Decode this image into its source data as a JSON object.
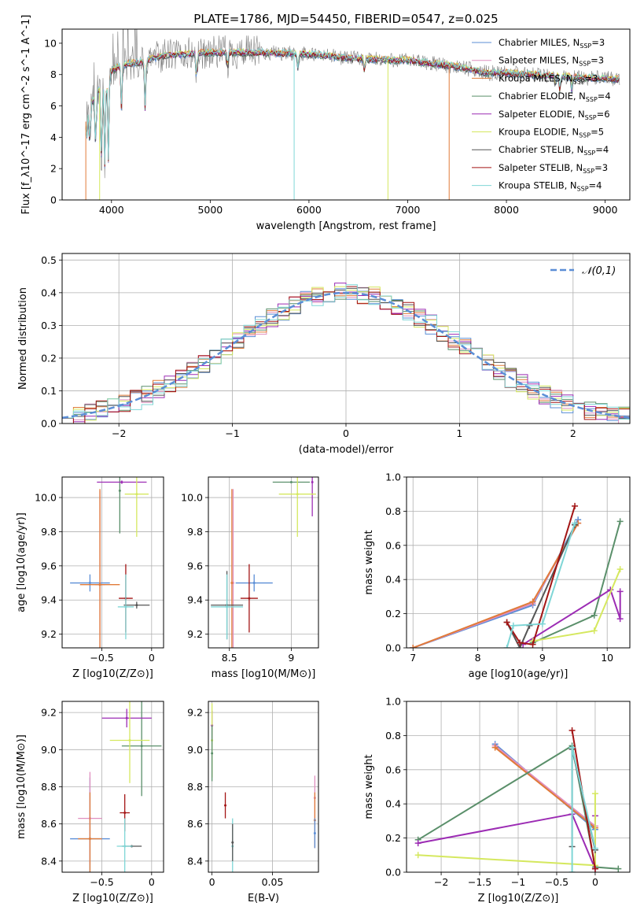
{
  "figure": {
    "title": "PLATE=1786, MJD=54450, FIBERID=0547, z=0.025"
  },
  "colors": {
    "Chabrier MILES": "#5b8ed6",
    "Salpeter MILES": "#e08fbf",
    "Kroupa MILES": "#e07b39",
    "Chabrier ELODIE": "#5a8f6a",
    "Salpeter ELODIE": "#9c2cb4",
    "Kroupa ELODIE": "#d5e85f",
    "Chabrier STELIB": "#555555",
    "Salpeter STELIB": "#a31515",
    "Kroupa STELIB": "#7fd6d6",
    "data": "#808080",
    "grid": "#b0b0b0"
  },
  "chart_data": [
    {
      "id": "spectrum",
      "type": "line",
      "xlabel": "wavelength [Angstrom, rest frame]",
      "ylabel": "Flux [f_λ10^-17 erg cm^-2 s^-1 A^-1]",
      "xlim": [
        3500,
        9250
      ],
      "ylim": [
        0,
        10.9
      ],
      "xticks": [
        4000,
        5000,
        6000,
        7000,
        8000,
        9000
      ],
      "yticks": [
        0,
        2,
        4,
        6,
        8,
        10
      ],
      "grid": false,
      "legend_position": "top-right",
      "legend": [
        {
          "label": "Chabrier MILES, N_SSP=3",
          "model": "Chabrier MILES"
        },
        {
          "label": "Salpeter MILES, N_SSP=3",
          "model": "Salpeter MILES"
        },
        {
          "label": "Kroupa MILES, N_SSP=3",
          "model": "Kroupa MILES"
        },
        {
          "label": "Chabrier ELODIE, N_SSP=4",
          "model": "Chabrier ELODIE"
        },
        {
          "label": "Salpeter ELODIE, N_SSP=6",
          "model": "Salpeter ELODIE"
        },
        {
          "label": "Kroupa ELODIE, N_SSP=5",
          "model": "Kroupa ELODIE"
        },
        {
          "label": "Chabrier STELIB, N_SSP=4",
          "model": "Chabrier STELIB"
        },
        {
          "label": "Salpeter STELIB, N_SSP=3",
          "model": "Salpeter STELIB"
        },
        {
          "label": "Kroupa STELIB, N_SSP=4",
          "model": "Kroupa STELIB"
        }
      ],
      "continuum": [
        [
          3740,
          5.0
        ],
        [
          3800,
          6.2
        ],
        [
          3900,
          7.4
        ],
        [
          4000,
          8.2
        ],
        [
          4100,
          8.6
        ],
        [
          4300,
          8.8
        ],
        [
          4500,
          9.2
        ],
        [
          5000,
          9.4
        ],
        [
          5500,
          9.4
        ],
        [
          6000,
          9.3
        ],
        [
          6500,
          9.0
        ],
        [
          7000,
          8.9
        ],
        [
          7500,
          8.5
        ],
        [
          7800,
          8.1
        ],
        [
          8000,
          8.1
        ],
        [
          8500,
          7.9
        ],
        [
          8800,
          7.8
        ],
        [
          9100,
          7.7
        ]
      ],
      "features": [
        [
          3750,
          4.0
        ],
        [
          3780,
          3.5
        ],
        [
          3840,
          3.2
        ],
        [
          3900,
          2.0
        ],
        [
          3933,
          2.2
        ],
        [
          3968,
          2.5
        ],
        [
          4102,
          5.8
        ],
        [
          4340,
          5.8
        ],
        [
          4861,
          7.6
        ],
        [
          5175,
          8.4
        ],
        [
          5890,
          8.4
        ],
        [
          6563,
          8.2
        ],
        [
          8498,
          7.3
        ],
        [
          8542,
          7.0
        ],
        [
          8662,
          7.0
        ]
      ],
      "spikes": [
        {
          "x": 3740,
          "ymin": 0,
          "model": "Kroupa MILES"
        },
        {
          "x": 3880,
          "ymin": 0,
          "model": "Kroupa ELODIE"
        },
        {
          "x": 5850,
          "ymin": 0,
          "model": "Kroupa STELIB"
        },
        {
          "x": 6800,
          "ymin": 0,
          "model": "Kroupa ELODIE"
        },
        {
          "x": 7420,
          "ymin": 0,
          "model": "Kroupa MILES"
        }
      ]
    },
    {
      "id": "residuals",
      "type": "bar",
      "xlabel": "(data-model)/error",
      "ylabel": "Normed distribution",
      "xlim": [
        -2.5,
        2.5
      ],
      "ylim": [
        0,
        0.52
      ],
      "xticks": [
        -2,
        -1,
        0,
        1,
        2
      ],
      "yticks": [
        0.0,
        0.1,
        0.2,
        0.3,
        0.4,
        0.5
      ],
      "grid": true,
      "legend_position": "top-right",
      "reference_curve": {
        "label": "𝒩(0,1)",
        "mean": 0,
        "sigma": 1,
        "amplitude": 0.4,
        "color": "#5b8ed6"
      },
      "bin_width": 0.1
    },
    {
      "id": "age_vs_Z",
      "type": "scatter",
      "xlabel": "Z [log10(Z/Z⊙)]",
      "ylabel": "age  [log10(age/yr)]",
      "xlim": [
        -0.9,
        0.12
      ],
      "ylim": [
        9.12,
        10.12
      ],
      "xticks": [
        -0.5,
        0.0
      ],
      "yticks": [
        9.2,
        9.4,
        9.6,
        9.8,
        10.0
      ],
      "grid": true,
      "points": [
        {
          "model": "Chabrier MILES",
          "x": -0.62,
          "xerr": 0.2,
          "y": 9.5,
          "yerr": 0.05
        },
        {
          "model": "Salpeter MILES",
          "x": -0.52,
          "xerr": 0.05,
          "y": 9.49,
          "yerr": 0.55
        },
        {
          "model": "Kroupa MILES",
          "x": -0.52,
          "xerr": 0.2,
          "y": 9.49,
          "yerr": 0.56
        },
        {
          "model": "Chabrier ELODIE",
          "x": -0.32,
          "xerr": 0.0,
          "y": 10.04,
          "yerr": 0.25
        },
        {
          "model": "Salpeter ELODIE",
          "x": -0.3,
          "xerr": 0.25,
          "y": 10.09,
          "yerr": 0.01
        },
        {
          "model": "Kroupa ELODIE",
          "x": -0.15,
          "xerr": 0.12,
          "y": 10.02,
          "yerr": 0.25
        },
        {
          "model": "Chabrier STELIB",
          "x": -0.15,
          "xerr": 0.13,
          "y": 9.37,
          "yerr": 0.02
        },
        {
          "model": "Salpeter STELIB",
          "x": -0.26,
          "xerr": 0.07,
          "y": 9.41,
          "yerr": 0.2
        },
        {
          "model": "Kroupa STELIB",
          "x": -0.26,
          "xerr": 0.08,
          "y": 9.36,
          "yerr": 0.19
        }
      ]
    },
    {
      "id": "age_vs_mass",
      "type": "scatter",
      "xlabel": "mass [log10(M/M⊙)]",
      "ylabel": "",
      "xlim": [
        8.33,
        9.22
      ],
      "ylim": [
        9.12,
        10.12
      ],
      "xticks": [
        8.5,
        9.0
      ],
      "yticks": [
        9.2,
        9.4,
        9.6,
        9.8,
        10.0
      ],
      "grid": true,
      "points": [
        {
          "model": "Chabrier MILES",
          "x": 8.7,
          "xerr": 0.15,
          "y": 9.5,
          "yerr": 0.05
        },
        {
          "model": "Salpeter MILES",
          "x": 8.53,
          "xerr": 0.0,
          "y": 9.5,
          "yerr": 0.55
        },
        {
          "model": "Kroupa MILES",
          "x": 8.52,
          "xerr": 0.0,
          "y": 9.5,
          "yerr": 0.55
        },
        {
          "model": "Chabrier ELODIE",
          "x": 9.0,
          "xerr": 0.15,
          "y": 10.09,
          "yerr": 0.0
        },
        {
          "model": "Salpeter ELODIE",
          "x": 9.17,
          "xerr": 0.0,
          "y": 10.09,
          "yerr": 0.2
        },
        {
          "model": "Kroupa ELODIE",
          "x": 9.05,
          "xerr": 0.15,
          "y": 10.02,
          "yerr": 0.25
        },
        {
          "model": "Chabrier STELIB",
          "x": 8.48,
          "xerr": 0.13,
          "y": 9.37,
          "yerr": 0.2
        },
        {
          "model": "Salpeter STELIB",
          "x": 8.66,
          "xerr": 0.07,
          "y": 9.41,
          "yerr": 0.2
        },
        {
          "model": "Kroupa STELIB",
          "x": 8.48,
          "xerr": 0.13,
          "y": 9.36,
          "yerr": 0.19
        }
      ]
    },
    {
      "id": "weight_vs_age",
      "type": "line",
      "xlabel": "age  [log10(age/yr)]",
      "ylabel": "mass weight",
      "xlim": [
        6.9,
        10.35
      ],
      "ylim": [
        0,
        1.0
      ],
      "xticks": [
        7,
        8,
        9,
        10
      ],
      "yticks": [
        0.0,
        0.2,
        0.4,
        0.6,
        0.8,
        1.0
      ],
      "grid": true,
      "series": [
        {
          "model": "Chabrier MILES",
          "x": [
            7.0,
            8.85,
            9.55
          ],
          "y": [
            0.0,
            0.25,
            0.75
          ]
        },
        {
          "model": "Salpeter MILES",
          "x": [
            7.0,
            8.85,
            9.55
          ],
          "y": [
            0.0,
            0.26,
            0.73
          ]
        },
        {
          "model": "Kroupa MILES",
          "x": [
            7.0,
            8.85,
            9.55
          ],
          "y": [
            0.0,
            0.27,
            0.73
          ]
        },
        {
          "model": "Chabrier ELODIE",
          "x": [
            8.85,
            9.8,
            10.2
          ],
          "y": [
            0.03,
            0.19,
            0.74
          ]
        },
        {
          "model": "Salpeter ELODIE",
          "x": [
            8.7,
            10.05,
            10.2,
            10.2
          ],
          "y": [
            0.02,
            0.34,
            0.17,
            0.33
          ]
        },
        {
          "model": "Kroupa ELODIE",
          "x": [
            8.85,
            9.8,
            10.2
          ],
          "y": [
            0.04,
            0.1,
            0.46
          ]
        },
        {
          "model": "Chabrier STELIB",
          "x": [
            8.45,
            8.65,
            8.8,
            9.5
          ],
          "y": [
            0.15,
            0.0,
            0.13,
            0.72
          ]
        },
        {
          "model": "Salpeter STELIB",
          "x": [
            8.45,
            8.65,
            8.85,
            9.5
          ],
          "y": [
            0.15,
            0.03,
            0.02,
            0.83
          ]
        },
        {
          "model": "Kroupa STELIB",
          "x": [
            8.45,
            8.55,
            9.0,
            9.5
          ],
          "y": [
            0.0,
            0.13,
            0.14,
            0.73
          ]
        }
      ]
    },
    {
      "id": "mass_vs_Z",
      "type": "scatter",
      "xlabel": "Z [log10(Z/Z⊙)]",
      "ylabel": "mass [log10(M/M⊙)]",
      "xlim": [
        -0.9,
        0.12
      ],
      "ylim": [
        8.34,
        9.26
      ],
      "xticks": [
        -0.5,
        0.0
      ],
      "yticks": [
        8.4,
        8.6,
        8.8,
        9.0,
        9.2
      ],
      "grid": true,
      "points": [
        {
          "model": "Chabrier MILES",
          "x": -0.62,
          "xerr": 0.2,
          "y": 8.52,
          "yerr": 0.33
        },
        {
          "model": "Salpeter MILES",
          "x": -0.62,
          "xerr": 0.12,
          "y": 8.63,
          "yerr": 0.25
        },
        {
          "model": "Kroupa MILES",
          "x": -0.62,
          "xerr": 0.12,
          "y": 8.52,
          "yerr": 0.25
        },
        {
          "model": "Chabrier ELODIE",
          "x": -0.1,
          "xerr": 0.2,
          "y": 9.02,
          "yerr": 0.27
        },
        {
          "model": "Salpeter ELODIE",
          "x": -0.25,
          "xerr": 0.25,
          "y": 9.17,
          "yerr": 0.05
        },
        {
          "model": "Kroupa ELODIE",
          "x": -0.22,
          "xerr": 0.2,
          "y": 9.05,
          "yerr": 0.23
        },
        {
          "model": "Chabrier STELIB",
          "x": -0.2,
          "xerr": 0.1,
          "y": 8.48,
          "yerr": 0.0
        },
        {
          "model": "Salpeter STELIB",
          "x": -0.27,
          "xerr": 0.05,
          "y": 8.66,
          "yerr": 0.1
        },
        {
          "model": "Kroupa STELIB",
          "x": -0.27,
          "xerr": 0.08,
          "y": 8.48,
          "yerr": 0.15
        }
      ]
    },
    {
      "id": "mass_vs_ebv",
      "type": "scatter",
      "xlabel": "E(B-V)",
      "ylabel": "",
      "xlim": [
        -0.003,
        0.088
      ],
      "ylim": [
        8.34,
        9.26
      ],
      "xticks": [
        0.0,
        0.05
      ],
      "yticks": [
        8.4,
        8.6,
        8.8,
        9.0,
        9.2
      ],
      "grid": true,
      "points": [
        {
          "model": "Salpeter ELODIE",
          "x": 0.0,
          "y": 9.13,
          "yerr": 0.08
        },
        {
          "model": "Kroupa ELODIE",
          "x": 0.0,
          "y": 9.05,
          "yerr": 0.2
        },
        {
          "model": "Chabrier ELODIE",
          "x": 0.0,
          "y": 8.98,
          "yerr": 0.15
        },
        {
          "model": "Salpeter STELIB",
          "x": 0.011,
          "y": 8.7,
          "yerr": 0.07
        },
        {
          "model": "Kroupa STELIB",
          "x": 0.017,
          "y": 8.48,
          "yerr": 0.15
        },
        {
          "model": "Chabrier STELIB",
          "x": 0.017,
          "y": 8.5,
          "yerr": 0.1
        },
        {
          "model": "Salpeter MILES",
          "x": 0.085,
          "y": 8.74,
          "yerr": 0.12
        },
        {
          "model": "Kroupa MILES",
          "x": 0.085,
          "y": 8.62,
          "yerr": 0.15
        },
        {
          "model": "Chabrier MILES",
          "x": 0.085,
          "y": 8.55,
          "yerr": 0.08
        }
      ]
    },
    {
      "id": "weight_vs_Z",
      "type": "line",
      "xlabel": "Z [log10(Z/Z⊙)]",
      "ylabel": "mass weight",
      "xlim": [
        -2.45,
        0.45
      ],
      "ylim": [
        0,
        1.0
      ],
      "xticks": [
        -2.0,
        -1.5,
        -1.0,
        -0.5,
        0.0
      ],
      "yticks": [
        0.0,
        0.2,
        0.4,
        0.6,
        0.8,
        1.0
      ],
      "grid": true,
      "series": [
        {
          "model": "Chabrier MILES",
          "x": [
            -1.3,
            0.0
          ],
          "y": [
            0.75,
            0.25
          ]
        },
        {
          "model": "Salpeter MILES",
          "x": [
            -1.3,
            0.0
          ],
          "y": [
            0.74,
            0.27
          ]
        },
        {
          "model": "Kroupa MILES",
          "x": [
            -1.3,
            0.0
          ],
          "y": [
            0.73,
            0.26
          ]
        },
        {
          "model": "Chabrier ELODIE",
          "x": [
            -2.3,
            -0.3,
            0.0,
            0.3
          ],
          "y": [
            0.19,
            0.74,
            0.03,
            0.02
          ]
        },
        {
          "model": "Salpeter ELODIE",
          "x": [
            -2.3,
            -0.3,
            0.0,
            0.0
          ],
          "y": [
            0.17,
            0.34,
            0.02,
            0.33
          ]
        },
        {
          "model": "Kroupa ELODIE",
          "x": [
            -2.3,
            0.0,
            0.0
          ],
          "y": [
            0.1,
            0.04,
            0.46
          ]
        },
        {
          "model": "Chabrier STELIB",
          "x": [
            -0.3,
            -0.3,
            0.0
          ],
          "y": [
            0.15,
            0.72,
            0.13
          ]
        },
        {
          "model": "Salpeter STELIB",
          "x": [
            -0.3,
            0.0
          ],
          "y": [
            0.83,
            0.02
          ]
        },
        {
          "model": "Kroupa STELIB",
          "x": [
            -0.3,
            -0.3,
            0.0
          ],
          "y": [
            0.0,
            0.73,
            0.14
          ]
        }
      ]
    }
  ]
}
